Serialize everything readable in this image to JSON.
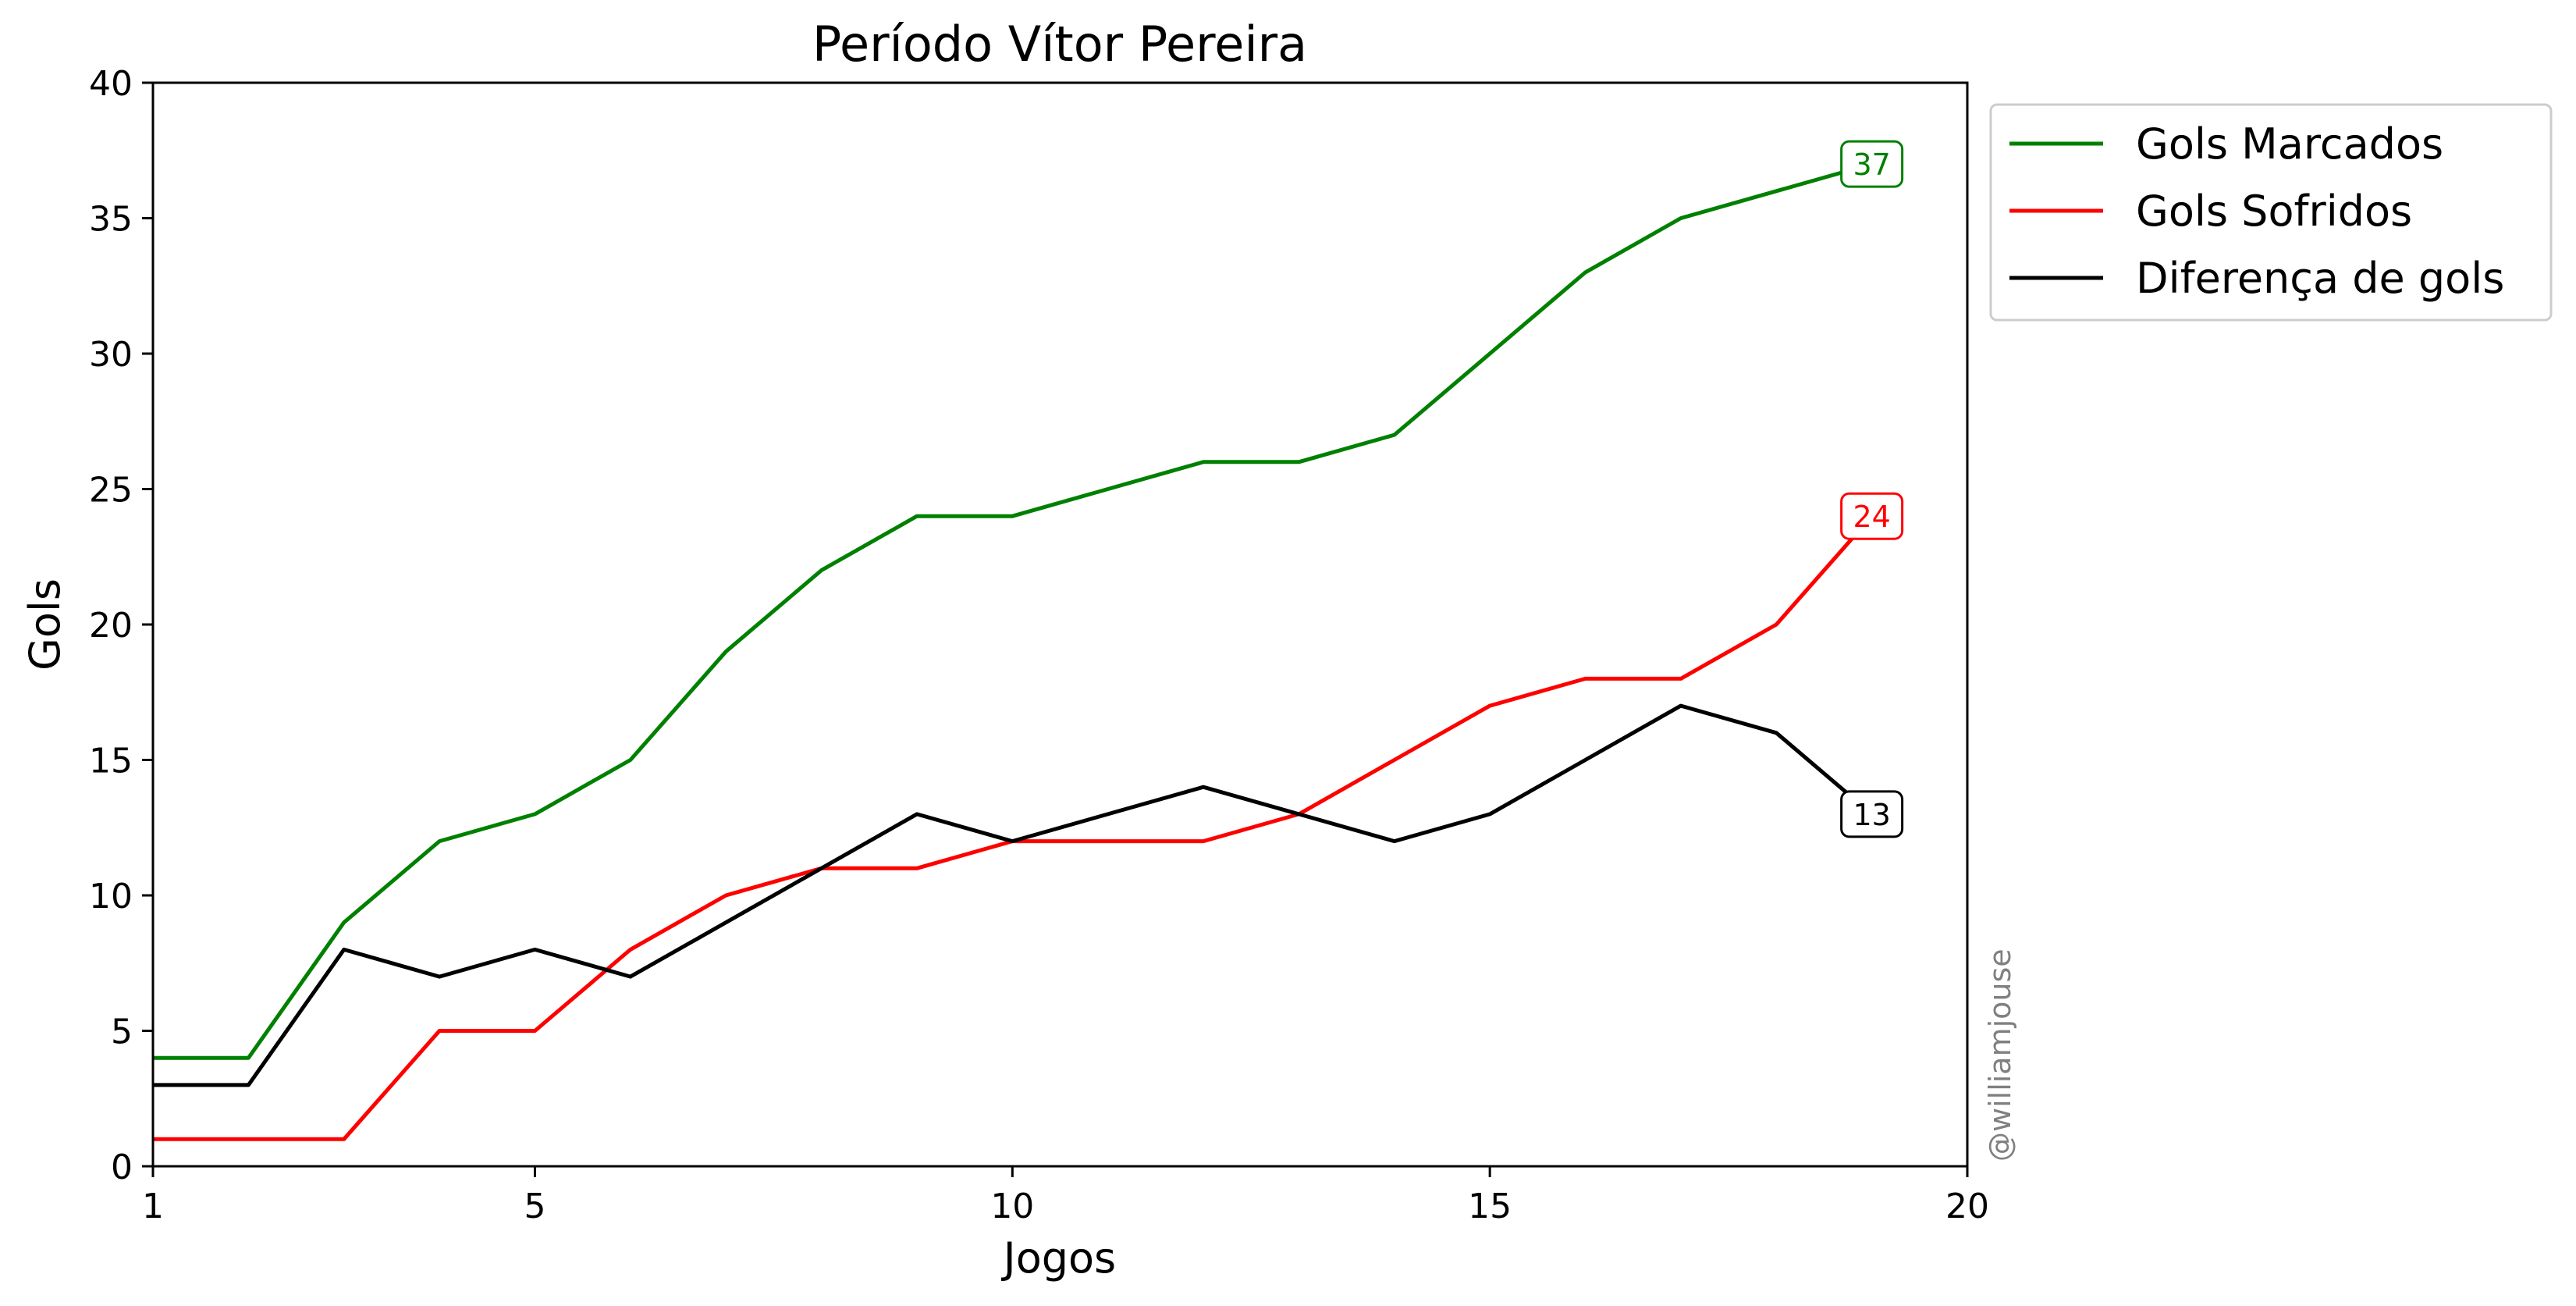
{
  "chart_data": {
    "type": "line",
    "title": "Período Vítor Pereira",
    "xlabel": "Jogos",
    "ylabel": "Gols",
    "xlim": [
      1,
      20
    ],
    "ylim": [
      0,
      40
    ],
    "xticks": [
      1,
      5,
      10,
      15,
      20
    ],
    "yticks": [
      0,
      5,
      10,
      15,
      20,
      25,
      30,
      35,
      40
    ],
    "grid": false,
    "legend_position": "outside-top-right",
    "x": [
      1,
      2,
      3,
      4,
      5,
      6,
      7,
      8,
      9,
      10,
      11,
      12,
      13,
      14,
      15,
      16,
      17,
      18,
      19
    ],
    "series": [
      {
        "name": "Gols Marcados",
        "color": "#008000",
        "values": [
          4,
          4,
          9,
          12,
          13,
          15,
          19,
          22,
          24,
          24,
          25,
          26,
          26,
          27,
          30,
          33,
          35,
          36,
          37
        ],
        "end_label": "37"
      },
      {
        "name": "Gols Sofridos",
        "color": "#ff0000",
        "values": [
          1,
          1,
          1,
          5,
          5,
          8,
          10,
          11,
          11,
          12,
          12,
          12,
          13,
          15,
          17,
          18,
          18,
          20,
          24
        ],
        "end_label": "24"
      },
      {
        "name": "Diferença de gols",
        "color": "#000000",
        "values": [
          3,
          3,
          8,
          7,
          8,
          7,
          9,
          11,
          13,
          12,
          13,
          14,
          13,
          12,
          13,
          15,
          17,
          16,
          13
        ],
        "end_label": "13"
      }
    ],
    "watermark": "@williamjouse"
  }
}
